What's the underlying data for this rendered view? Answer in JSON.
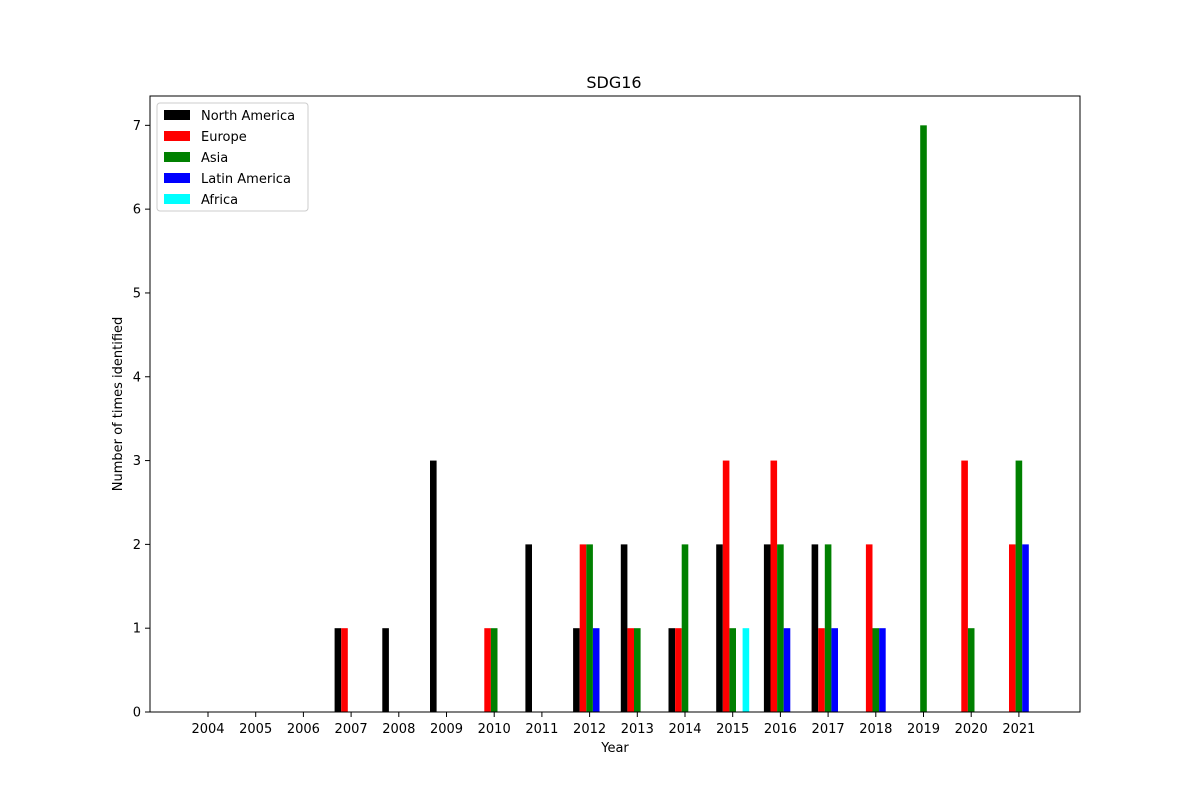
{
  "chart_data": {
    "type": "bar",
    "title": "SDG16",
    "xlabel": "Year",
    "ylabel": "Number of times identified",
    "categories": [
      "2004",
      "2005",
      "2006",
      "2007",
      "2008",
      "2009",
      "2010",
      "2011",
      "2012",
      "2013",
      "2014",
      "2015",
      "2016",
      "2017",
      "2018",
      "2019",
      "2020",
      "2021"
    ],
    "ylim": [
      0,
      7.35
    ],
    "yticks": [
      0,
      1,
      2,
      3,
      4,
      5,
      6,
      7
    ],
    "legend_position": "top-left",
    "grid": false,
    "series": [
      {
        "name": "North America",
        "color": "#000000",
        "values": [
          0,
          0,
          0,
          1,
          1,
          3,
          0,
          2,
          1,
          2,
          1,
          2,
          2,
          2,
          0,
          0,
          0,
          0
        ]
      },
      {
        "name": "Europe",
        "color": "#ff0000",
        "values": [
          0,
          0,
          0,
          1,
          0,
          0,
          1,
          0,
          2,
          1,
          1,
          3,
          3,
          1,
          2,
          0,
          3,
          2
        ]
      },
      {
        "name": "Asia",
        "color": "#008000",
        "values": [
          0,
          0,
          0,
          0,
          0,
          0,
          1,
          0,
          2,
          1,
          2,
          1,
          2,
          2,
          1,
          7,
          1,
          3
        ]
      },
      {
        "name": "Latin America",
        "color": "#0000ff",
        "values": [
          0,
          0,
          0,
          0,
          0,
          0,
          0,
          0,
          1,
          0,
          0,
          0,
          1,
          1,
          1,
          0,
          0,
          2
        ]
      },
      {
        "name": "Africa",
        "color": "#00ffff",
        "values": [
          0,
          0,
          0,
          0,
          0,
          0,
          0,
          0,
          0,
          0,
          0,
          1,
          0,
          0,
          0,
          0,
          0,
          0
        ]
      }
    ]
  }
}
